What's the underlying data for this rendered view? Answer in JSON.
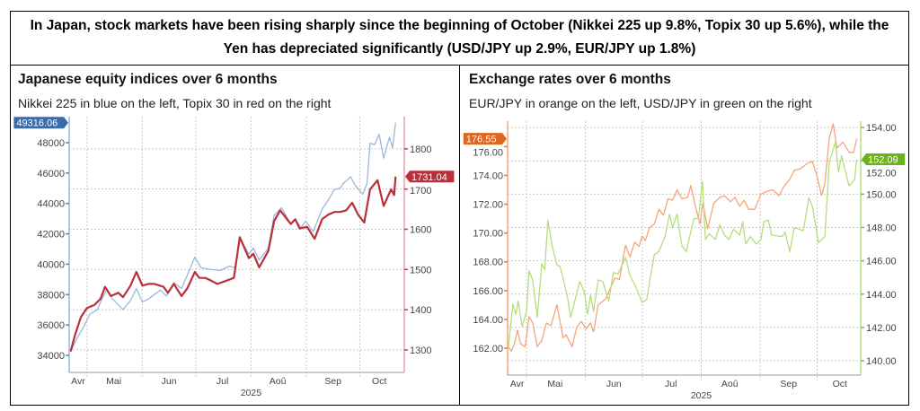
{
  "header": {
    "text": "In Japan, stock markets have been rising sharply since the beginning of October (Nikkei 225 up 9.8%, Topix 30 up 5.6%), while the Yen has depreciated significantly (USD/JPY up 2.9%, EUR/JPY up 1.8%)"
  },
  "colors": {
    "nikkei": "#9db7db",
    "topix": "#b8303c",
    "eurjpy": "#f5a57c",
    "usdjpy": "#b5dd80",
    "nikkei_tag": "#3a6aa8",
    "topix_tag": "#b8303c",
    "eurjpy_tag": "#e0651e",
    "usdjpy_tag": "#6bb318"
  },
  "chart_data": [
    {
      "type": "line",
      "title": "Japanese equity indices over 6 months",
      "subtitle": "Nikkei 225 in blue on the left, Topix 30 in red on the right",
      "x_unit": "days since 1 May 2025",
      "xlim": [
        -10,
        178
      ],
      "month_boundaries": [
        0,
        31,
        61,
        92,
        123,
        153
      ],
      "x_ticks": [
        {
          "label": "Avr",
          "x": -5
        },
        {
          "label": "Mai",
          "x": 15
        },
        {
          "label": "Jun",
          "x": 46
        },
        {
          "label": "Jul",
          "x": 76
        },
        {
          "label": "Aoû",
          "x": 107
        },
        {
          "label": "Sep",
          "x": 138
        },
        {
          "label": "Oct",
          "x": 164
        }
      ],
      "year_label": "2025",
      "year_x": 92,
      "y_left": {
        "ylim": [
          32878,
          49713
        ],
        "ticks": [
          34000,
          36000,
          38000,
          40000,
          42000,
          44000,
          46000,
          48000
        ],
        "tick_labels": [
          "34000",
          "36000",
          "38000",
          "40000",
          "42000",
          "44000",
          "46000",
          "48000"
        ]
      },
      "y_right": {
        "ylim": [
          1244,
          1880
        ],
        "ticks": [
          1300,
          1400,
          1500,
          1600,
          1700,
          1800
        ],
        "tick_labels": [
          "1300",
          "1400",
          "1500",
          "1600",
          "1700",
          "1800"
        ]
      },
      "grid": true,
      "series": [
        {
          "name": "Nikkei 225",
          "axis": "left",
          "color_key": "nikkei",
          "last_label": "49316.06",
          "width": 1.3,
          "x": [
            -9.2,
            -5.9,
            -1.7,
            1.7,
            5.9,
            7.6,
            10.9,
            14.3,
            20.2,
            24.4,
            27.7,
            31.1,
            34.5,
            41.2,
            44.5,
            48.7,
            53.0,
            56.3,
            60.5,
            63.9,
            68.1,
            74.8,
            79.8,
            83.2,
            85.7,
            90.8,
            93.3,
            96.6,
            101.7,
            105.0,
            109.2,
            114.3,
            116.8,
            120.2,
            122.7,
            126.9,
            131.9,
            135.3,
            138.7,
            142.0,
            143.7,
            147.9,
            150.4,
            154.6,
            157.1,
            158.8,
            161.3,
            163.9,
            166.4,
            169.7,
            171.4,
            173.1
          ],
          "y": [
            34256,
            35045,
            35933,
            36721,
            37017,
            37510,
            38299,
            37707,
            37017,
            37609,
            38398,
            37510,
            37707,
            38299,
            37905,
            38792,
            38398,
            39285,
            40468,
            39778,
            39679,
            39581,
            39877,
            39778,
            41750,
            40665,
            41060,
            40271,
            41060,
            43229,
            43722,
            42637,
            42933,
            42440,
            42835,
            42144,
            43623,
            44215,
            44905,
            45004,
            45300,
            45753,
            45201,
            44609,
            45300,
            47962,
            47863,
            48553,
            46976,
            48356,
            47666,
            49316.06
          ]
        },
        {
          "name": "Topix 30",
          "axis": "right",
          "color_key": "topix",
          "last_label": "1731.04",
          "width": 2.2,
          "x": [
            -9.2,
            -6.7,
            -3.4,
            0,
            4.2,
            7.6,
            10.1,
            13.4,
            17.6,
            20.2,
            24.4,
            27.7,
            31.1,
            34.5,
            37.8,
            42.9,
            45.4,
            48.7,
            53.0,
            56.3,
            60.5,
            63.0,
            66.4,
            69.7,
            73.1,
            78.2,
            82.4,
            85.7,
            90.8,
            93.3,
            96.6,
            101.7,
            105.0,
            108.4,
            114.3,
            116.8,
            119.3,
            123.5,
            127.7,
            131.9,
            135.3,
            138.7,
            142.0,
            145.4,
            148.7,
            152.1,
            155.5,
            158.8,
            163.0,
            166.4,
            170.6,
            172.3,
            173.1
          ],
          "y": [
            1296,
            1337,
            1382,
            1404,
            1412,
            1427,
            1457,
            1434,
            1442,
            1431,
            1460,
            1494,
            1460,
            1464,
            1464,
            1457,
            1442,
            1464,
            1434,
            1453,
            1494,
            1479,
            1479,
            1472,
            1464,
            1472,
            1479,
            1580,
            1528,
            1539,
            1505,
            1546,
            1621,
            1647,
            1613,
            1625,
            1602,
            1606,
            1576,
            1625,
            1636,
            1643,
            1643,
            1647,
            1666,
            1636,
            1617,
            1699,
            1722,
            1658,
            1699,
            1685,
            1731.04
          ]
        }
      ]
    },
    {
      "type": "line",
      "title": "Exchange rates over 6 months",
      "subtitle": "EUR/JPY in orange on the left, USD/JPY in green on the right",
      "x_unit": "days since 1 May 2025",
      "xlim": [
        -10,
        176
      ],
      "month_boundaries": [
        0,
        31,
        61,
        92,
        123,
        153
      ],
      "x_ticks": [
        {
          "label": "Avr",
          "x": -5
        },
        {
          "label": "Mai",
          "x": 15
        },
        {
          "label": "Jun",
          "x": 46
        },
        {
          "label": "Jul",
          "x": 76
        },
        {
          "label": "Aoû",
          "x": 107
        },
        {
          "label": "Sep",
          "x": 138
        },
        {
          "label": "Oct",
          "x": 165
        }
      ],
      "year_label": "2025",
      "year_x": 92,
      "y_left": {
        "ylim": [
          160.13,
          177.77
        ],
        "ticks": [
          162,
          164,
          166,
          168,
          170,
          172,
          174,
          176
        ],
        "tick_labels": [
          "162.00",
          "164.00",
          "166.00",
          "168.00",
          "170.00",
          "172.00",
          "174.00",
          "176.00"
        ]
      },
      "y_right": {
        "ylim": [
          139.14,
          154.38
        ],
        "ticks": [
          140,
          142,
          144,
          146,
          148,
          150,
          152,
          154
        ],
        "tick_labels": [
          "140.00",
          "142.00",
          "144.00",
          "146.00",
          "148.00",
          "150.00",
          "152.00",
          "154.00"
        ]
      },
      "grid": true,
      "series": [
        {
          "name": "EUR/JPY",
          "axis": "left",
          "color_key": "eurjpy",
          "last_label": "176.55",
          "width": 1.3,
          "x": [
            -9.6,
            -8.0,
            -6.4,
            -4.8,
            -3.2,
            -0.8,
            1.3,
            3.2,
            5.6,
            8.0,
            10.4,
            12.8,
            16.0,
            19.2,
            20.8,
            24.0,
            26.4,
            28.8,
            31.3,
            33.7,
            35.3,
            37.7,
            41.7,
            46.5,
            48.9,
            52.1,
            54.5,
            56.9,
            59.3,
            60.9,
            62.5,
            64.9,
            67.3,
            69.7,
            72.1,
            74.5,
            76.9,
            79.3,
            81.7,
            84.9,
            86.5,
            88.9,
            91.3,
            92.9,
            95.4,
            98.6,
            101.8,
            104.2,
            107.4,
            109.8,
            112.2,
            114.6,
            117.0,
            120.2,
            123.4,
            126.6,
            129.8,
            133.0,
            135.4,
            138.6,
            141.0,
            144.2,
            148.2,
            150.6,
            153.0,
            155.4,
            157.1,
            159.5,
            161.5,
            163.5,
            166.7,
            169.9,
            172.3,
            173.9
          ],
          "y": [
            162.1,
            161.79,
            162.31,
            163.25,
            162.31,
            162.1,
            164.18,
            163.76,
            162.1,
            162.52,
            163.76,
            163.56,
            165.01,
            162.73,
            162.93,
            162.1,
            163.45,
            163.87,
            163.35,
            163.76,
            163.14,
            165.01,
            165.43,
            166.88,
            166.77,
            169.16,
            168.33,
            169.37,
            169.06,
            169.79,
            169.47,
            170.41,
            170.62,
            171.65,
            171.24,
            172.38,
            172.28,
            173.0,
            172.38,
            172.48,
            173.31,
            171.86,
            170.62,
            172.07,
            170.3,
            172.07,
            172.48,
            172.59,
            172.17,
            172.48,
            171.86,
            172.28,
            171.65,
            171.65,
            172.69,
            172.9,
            173.0,
            172.59,
            173.21,
            173.73,
            174.35,
            174.46,
            174.87,
            174.97,
            173.94,
            172.59,
            173.42,
            176.64,
            177.57,
            175.91,
            176.32,
            175.6,
            175.6,
            176.55
          ]
        },
        {
          "name": "USD/JPY",
          "axis": "right",
          "color_key": "usdjpy",
          "last_label": "152.09",
          "width": 1.3,
          "x": [
            -9.6,
            -7.2,
            -5.6,
            -4.5,
            -2.4,
            0,
            1.3,
            3.2,
            5.6,
            8.0,
            9.6,
            11.2,
            13.6,
            16.0,
            17.6,
            20.0,
            21.6,
            23.2,
            25.6,
            28.0,
            30.4,
            32.1,
            33.7,
            35.3,
            37.7,
            40.1,
            43.3,
            45.7,
            48.1,
            52.1,
            54.5,
            56.9,
            60.9,
            63.3,
            64.9,
            67.3,
            69.7,
            72.9,
            75.3,
            76.9,
            79.3,
            81.7,
            84.1,
            88.1,
            90.5,
            92.6,
            94.2,
            96.2,
            99.4,
            101.8,
            104.2,
            106.6,
            109.0,
            112.2,
            113.8,
            115.4,
            117.8,
            121.0,
            123.4,
            125.0,
            127.4,
            129.0,
            134.6,
            136.2,
            138.6,
            141.0,
            145.8,
            148.7,
            150.6,
            153.8,
            157.1,
            159.5,
            162.7,
            164.3,
            165.9,
            169.9,
            172.8,
            173.9
          ],
          "y": [
            140.81,
            143.41,
            142.78,
            143.59,
            142.06,
            142.96,
            145.39,
            144.85,
            142.6,
            145.83,
            145.48,
            148.44,
            146.82,
            145.75,
            145.66,
            144.58,
            143.77,
            142.6,
            143.68,
            144.76,
            144.13,
            142.78,
            143.95,
            142.96,
            144.85,
            144.76,
            143.59,
            145.3,
            145.21,
            146.19,
            145.12,
            144.58,
            143.5,
            143.68,
            144.85,
            146.37,
            146.55,
            147.45,
            148.8,
            147.99,
            148.8,
            146.91,
            146.55,
            148.53,
            148.53,
            150.77,
            147.27,
            147.63,
            147.27,
            148.17,
            147.54,
            147.27,
            147.9,
            147.54,
            148.35,
            147.0,
            147.45,
            147.0,
            147.27,
            148.35,
            148.44,
            147.54,
            147.45,
            147.72,
            146.55,
            147.99,
            147.81,
            149.78,
            149.25,
            147.09,
            147.45,
            151.94,
            153.11,
            151.31,
            152.3,
            150.49,
            150.87,
            152.09
          ]
        }
      ]
    }
  ]
}
